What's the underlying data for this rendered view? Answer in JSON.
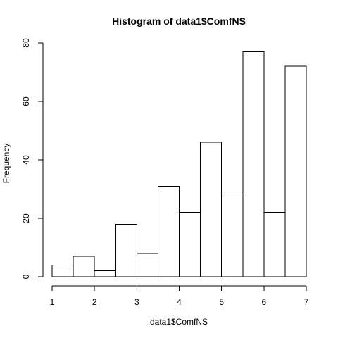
{
  "chart_data": {
    "type": "bar",
    "title": "Histogram of data1$ComfNS",
    "xlabel": "data1$ComfNS",
    "ylabel": "Frequency",
    "bins": [
      {
        "from": 1.0,
        "to": 1.5,
        "count": 4
      },
      {
        "from": 1.5,
        "to": 2.0,
        "count": 7
      },
      {
        "from": 2.0,
        "to": 2.5,
        "count": 2
      },
      {
        "from": 2.5,
        "to": 3.0,
        "count": 18
      },
      {
        "from": 3.0,
        "to": 3.5,
        "count": 8
      },
      {
        "from": 3.5,
        "to": 4.0,
        "count": 31
      },
      {
        "from": 4.0,
        "to": 4.5,
        "count": 22
      },
      {
        "from": 4.5,
        "to": 5.0,
        "count": 46
      },
      {
        "from": 5.0,
        "to": 5.5,
        "count": 29
      },
      {
        "from": 5.5,
        "to": 6.0,
        "count": 77
      },
      {
        "from": 6.0,
        "to": 6.5,
        "count": 22
      },
      {
        "from": 6.5,
        "to": 7.0,
        "count": 72
      }
    ],
    "xlim": [
      1,
      7
    ],
    "ylim": [
      0,
      80
    ],
    "xticks": [
      1,
      2,
      3,
      4,
      5,
      6,
      7
    ],
    "yticks": [
      0,
      20,
      40,
      60,
      80
    ],
    "grid": false,
    "legend": "none",
    "colors": {
      "bar_fill": "#ffffff",
      "bar_stroke": "#000000"
    }
  }
}
